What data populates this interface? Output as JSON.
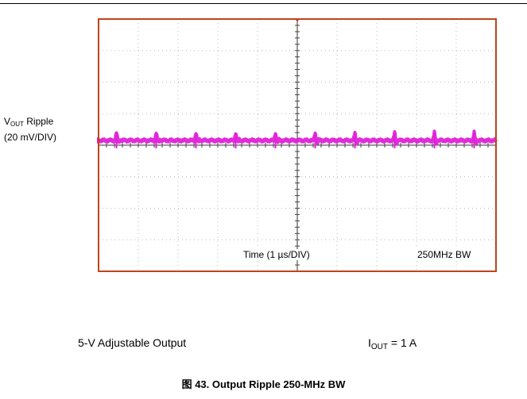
{
  "chart_data": {
    "type": "line",
    "title": "",
    "grid": true,
    "x_divisions": 10,
    "y_divisions": 8,
    "channel_label_line1": "V",
    "channel_label_sub": "OUT",
    "channel_label_rest": " Ripple",
    "channel_scale": "(20 mV/DIV)",
    "time_label": "Time (1 µs/DIV)",
    "bandwidth_label": "250MHz BW",
    "spike_times_div": [
      0.45,
      1.45,
      2.45,
      3.45,
      4.45,
      5.45,
      6.45,
      7.45,
      8.45,
      9.45
    ],
    "spike_amplitude_div": 0.25,
    "trace_level_div": 0.15,
    "trace_color": "#e020d8",
    "frame_color": "#c0441a"
  },
  "notes": {
    "left": "5-V Adjustable Output",
    "right_I": "I",
    "right_sub": "OUT",
    "right_rest": " = 1 A"
  },
  "caption": "图 43. Output Ripple 250-MHz BW"
}
